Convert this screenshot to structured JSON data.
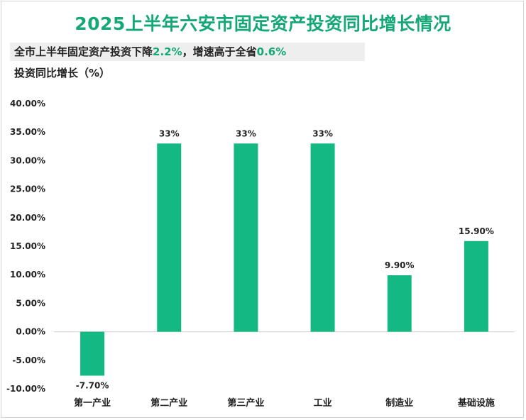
{
  "title": "2025上半年六安市固定资产投资同比增长情况",
  "subtitle": {
    "part1": "全市上半年固定资产投资下降",
    "value1": "2.2%",
    "part2": "，增速高于全省",
    "value2": "0.6%"
  },
  "unit_label": "投资同比增长（%）",
  "colors": {
    "bar": "#14b882",
    "accent": "#14a877"
  },
  "chart_data": {
    "type": "bar",
    "title": "2025上半年六安市固定资产投资同比增长情况",
    "ylabel": "投资同比增长（%）",
    "categories": [
      "第一产业",
      "第二产业",
      "第三产业",
      "工业",
      "制造业",
      "基础设施"
    ],
    "values": [
      -7.7,
      33,
      33,
      33,
      9.9,
      15.9
    ],
    "data_labels": [
      "-7.70%",
      "33%",
      "33%",
      "33%",
      "9.90%",
      "15.90%"
    ],
    "ylim": [
      -10,
      40
    ],
    "yticks": [
      40,
      35,
      30,
      25,
      20,
      15,
      10,
      5,
      0,
      -5,
      -10
    ],
    "ytick_labels": [
      "40.00%",
      "35.00%",
      "30.00%",
      "25.00%",
      "20.00%",
      "15.00%",
      "10.00%",
      "5.00%",
      "0.00%",
      "-5.00%",
      "-10.00%"
    ],
    "grid": false,
    "legend": "none"
  }
}
